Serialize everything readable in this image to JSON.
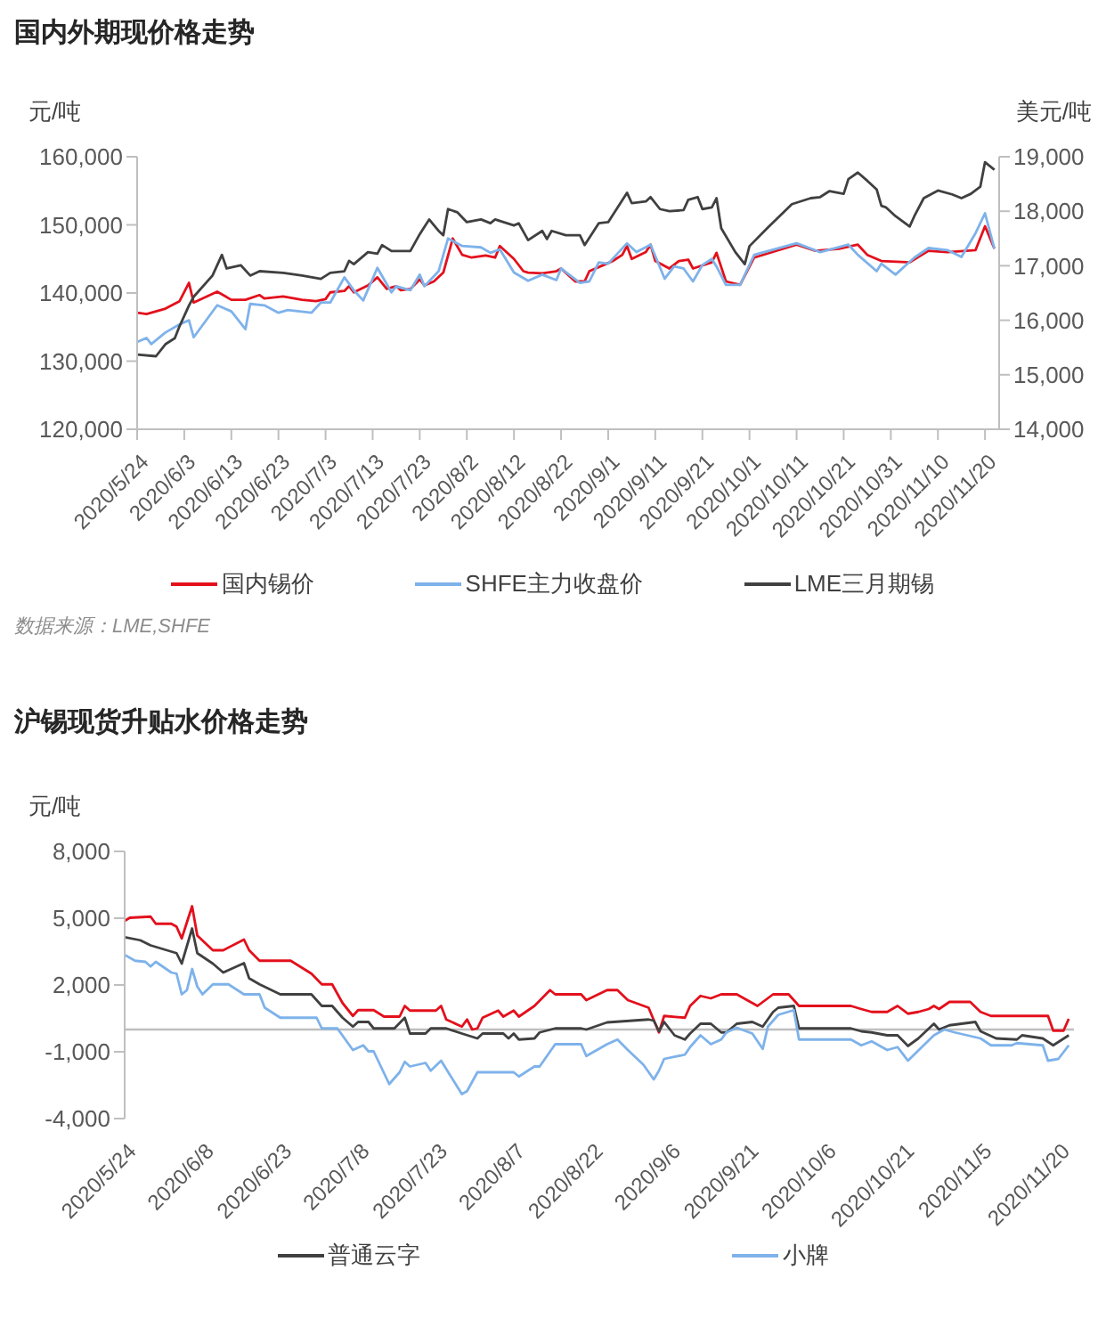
{
  "chart_data": [
    {
      "type": "line",
      "title": "国内外期现价格走势",
      "ylabel": "元/吨",
      "y2label": "美元/吨",
      "xlim": [
        "2020-05-24",
        "2020-11-23"
      ],
      "xticks": [
        {
          "value": "2020-05-24",
          "label": "2020/5/24"
        },
        {
          "value": "2020-06-03",
          "label": "2020/6/3"
        },
        {
          "value": "2020-06-13",
          "label": "2020/6/13"
        },
        {
          "value": "2020-06-23",
          "label": "2020/6/23"
        },
        {
          "value": "2020-07-03",
          "label": "2020/7/3"
        },
        {
          "value": "2020-07-13",
          "label": "2020/7/13"
        },
        {
          "value": "2020-07-23",
          "label": "2020/7/23"
        },
        {
          "value": "2020-08-02",
          "label": "2020/8/2"
        },
        {
          "value": "2020-08-12",
          "label": "2020/8/12"
        },
        {
          "value": "2020-08-22",
          "label": "2020/8/22"
        },
        {
          "value": "2020-09-01",
          "label": "2020/9/1"
        },
        {
          "value": "2020-09-11",
          "label": "2020/9/11"
        },
        {
          "value": "2020-09-21",
          "label": "2020/9/21"
        },
        {
          "value": "2020-10-01",
          "label": "2020/10/1"
        },
        {
          "value": "2020-10-11",
          "label": "2020/10/11"
        },
        {
          "value": "2020-10-21",
          "label": "2020/10/21"
        },
        {
          "value": "2020-10-31",
          "label": "2020/10/31"
        },
        {
          "value": "2020-11-10",
          "label": "2020/11/10"
        },
        {
          "value": "2020-11-20",
          "label": "2020/11/20"
        }
      ],
      "ylim": [
        120000,
        160000
      ],
      "yticks": [
        {
          "value": 120000,
          "label": "120,000"
        },
        {
          "value": 130000,
          "label": "130,000"
        },
        {
          "value": 140000,
          "label": "140,000"
        },
        {
          "value": 150000,
          "label": "150,000"
        },
        {
          "value": 160000,
          "label": "160,000"
        }
      ],
      "y2lim": [
        14000,
        19000
      ],
      "y2ticks": [
        {
          "value": 14000,
          "label": "14,000"
        },
        {
          "value": 15000,
          "label": "15,000"
        },
        {
          "value": 16000,
          "label": "16,000"
        },
        {
          "value": 17000,
          "label": "17,000"
        },
        {
          "value": 18000,
          "label": "18,000"
        },
        {
          "value": 19000,
          "label": "19,000"
        }
      ],
      "legend": "bottom",
      "annotations": [
        "数据来源：LME,SHFE"
      ],
      "series": [
        {
          "name": "国内锡价",
          "color": "#e3101c",
          "x": [
            "2020-05-24",
            "2020-05-26",
            "2020-05-30",
            "2020-06-02",
            "2020-06-04",
            "2020-06-05",
            "2020-06-10",
            "2020-06-13",
            "2020-06-16",
            "2020-06-19",
            "2020-06-20",
            "2020-06-24",
            "2020-06-28",
            "2020-07-01",
            "2020-07-03",
            "2020-07-04",
            "2020-07-07",
            "2020-07-08",
            "2020-07-09",
            "2020-07-12",
            "2020-07-14",
            "2020-07-16",
            "2020-07-18",
            "2020-07-19",
            "2020-07-21",
            "2020-07-23",
            "2020-07-24",
            "2020-07-26",
            "2020-07-28",
            "2020-07-30",
            "2020-08-01",
            "2020-08-03",
            "2020-08-06",
            "2020-08-08",
            "2020-08-09",
            "2020-08-12",
            "2020-08-14",
            "2020-08-15",
            "2020-08-18",
            "2020-08-21",
            "2020-08-22",
            "2020-08-25",
            "2020-08-27",
            "2020-08-28",
            "2020-08-31",
            "2020-09-02",
            "2020-09-04",
            "2020-09-05",
            "2020-09-06",
            "2020-09-09",
            "2020-09-10",
            "2020-09-11",
            "2020-09-14",
            "2020-09-16",
            "2020-09-18",
            "2020-09-19",
            "2020-09-23",
            "2020-09-24",
            "2020-09-26",
            "2020-09-29",
            "2020-10-02",
            "2020-10-11",
            "2020-10-15",
            "2020-10-20",
            "2020-10-24",
            "2020-10-26",
            "2020-10-29",
            "2020-11-04",
            "2020-11-08",
            "2020-11-12",
            "2020-11-18",
            "2020-11-20",
            "2020-11-22"
          ],
          "values": [
            137100,
            136900,
            137700,
            138800,
            141500,
            138600,
            140200,
            139000,
            139000,
            139700,
            139200,
            139500,
            139000,
            138800,
            139100,
            140100,
            140300,
            141000,
            140100,
            141100,
            142300,
            140600,
            141000,
            140400,
            140600,
            142000,
            141100,
            141700,
            143000,
            148000,
            145600,
            145200,
            145500,
            145200,
            146900,
            145000,
            143200,
            143000,
            142900,
            143200,
            143600,
            141700,
            141700,
            143200,
            144100,
            144700,
            145600,
            146900,
            145000,
            146000,
            147100,
            144700,
            143600,
            144700,
            144900,
            143600,
            144500,
            145900,
            141700,
            141200,
            145200,
            147100,
            146200,
            146500,
            147100,
            145600,
            144700,
            144500,
            146200,
            146000,
            146300,
            149800,
            146500
          ]
        },
        {
          "name": "SHFE主力收盘价",
          "color": "#7eb2ea",
          "x": [
            "2020-05-24",
            "2020-05-26",
            "2020-05-27",
            "2020-05-30",
            "2020-06-02",
            "2020-06-04",
            "2020-06-05",
            "2020-06-10",
            "2020-06-13",
            "2020-06-16",
            "2020-06-17",
            "2020-06-20",
            "2020-06-23",
            "2020-06-25",
            "2020-06-30",
            "2020-07-02",
            "2020-07-04",
            "2020-07-07",
            "2020-07-09",
            "2020-07-11",
            "2020-07-14",
            "2020-07-17",
            "2020-07-18",
            "2020-07-21",
            "2020-07-23",
            "2020-07-24",
            "2020-07-27",
            "2020-07-29",
            "2020-08-01",
            "2020-08-05",
            "2020-08-07",
            "2020-08-09",
            "2020-08-12",
            "2020-08-15",
            "2020-08-18",
            "2020-08-21",
            "2020-08-22",
            "2020-08-26",
            "2020-08-28",
            "2020-08-30",
            "2020-09-01",
            "2020-09-05",
            "2020-09-07",
            "2020-09-10",
            "2020-09-13",
            "2020-09-15",
            "2020-09-17",
            "2020-09-19",
            "2020-09-21",
            "2020-09-23",
            "2020-09-24",
            "2020-09-26",
            "2020-09-29",
            "2020-10-02",
            "2020-10-11",
            "2020-10-16",
            "2020-10-22",
            "2020-10-24",
            "2020-10-28",
            "2020-10-29",
            "2020-11-01",
            "2020-11-05",
            "2020-11-08",
            "2020-11-12",
            "2020-11-15",
            "2020-11-18",
            "2020-11-20",
            "2020-11-22"
          ],
          "values": [
            132800,
            133400,
            132500,
            134200,
            135400,
            136000,
            133500,
            138200,
            137300,
            134700,
            138400,
            138200,
            137100,
            137500,
            137100,
            138600,
            138600,
            142300,
            140400,
            138900,
            143700,
            140100,
            141000,
            140400,
            142700,
            141000,
            143200,
            148000,
            146900,
            146700,
            145900,
            146400,
            143000,
            141800,
            142700,
            141900,
            143600,
            141500,
            141700,
            144500,
            144300,
            147300,
            146000,
            147100,
            142100,
            143900,
            143600,
            141700,
            144100,
            145000,
            143900,
            141200,
            141200,
            145600,
            147300,
            146000,
            147100,
            145600,
            143200,
            144300,
            142700,
            145200,
            146600,
            146300,
            145300,
            148800,
            151700,
            146500
          ]
        },
        {
          "name": "LME三月期锡",
          "color": "#404040",
          "axis": "y2",
          "x": [
            "2020-05-24",
            "2020-05-28",
            "2020-05-30",
            "2020-06-01",
            "2020-06-02",
            "2020-06-04",
            "2020-06-05",
            "2020-06-09",
            "2020-06-11",
            "2020-06-12",
            "2020-06-15",
            "2020-06-17",
            "2020-06-19",
            "2020-06-24",
            "2020-06-28",
            "2020-07-02",
            "2020-07-04",
            "2020-07-07",
            "2020-07-08",
            "2020-07-09",
            "2020-07-12",
            "2020-07-14",
            "2020-07-15",
            "2020-07-17",
            "2020-07-21",
            "2020-07-23",
            "2020-07-25",
            "2020-07-27",
            "2020-07-28",
            "2020-07-29",
            "2020-07-31",
            "2020-08-02",
            "2020-08-05",
            "2020-08-07",
            "2020-08-08",
            "2020-08-12",
            "2020-08-13",
            "2020-08-15",
            "2020-08-18",
            "2020-08-19",
            "2020-08-20",
            "2020-08-23",
            "2020-08-26",
            "2020-08-27",
            "2020-08-30",
            "2020-09-01",
            "2020-09-05",
            "2020-09-06",
            "2020-09-09",
            "2020-09-10",
            "2020-09-12",
            "2020-09-14",
            "2020-09-17",
            "2020-09-18",
            "2020-09-20",
            "2020-09-21",
            "2020-09-23",
            "2020-09-24",
            "2020-09-25",
            "2020-09-28",
            "2020-09-30",
            "2020-10-01",
            "2020-10-05",
            "2020-10-10",
            "2020-10-14",
            "2020-10-16",
            "2020-10-18",
            "2020-10-21",
            "2020-10-22",
            "2020-10-24",
            "2020-10-26",
            "2020-10-28",
            "2020-10-29",
            "2020-10-30",
            "2020-11-01",
            "2020-11-04",
            "2020-11-05",
            "2020-11-07",
            "2020-11-10",
            "2020-11-13",
            "2020-11-15",
            "2020-11-17",
            "2020-11-19",
            "2020-11-20",
            "2020-11-22"
          ],
          "values": [
            15370,
            15340,
            15560,
            15670,
            15890,
            16270,
            16430,
            16820,
            17200,
            16950,
            17010,
            16820,
            16900,
            16870,
            16820,
            16760,
            16870,
            16900,
            17090,
            17030,
            17250,
            17220,
            17380,
            17270,
            17270,
            17580,
            17850,
            17640,
            17560,
            18040,
            17980,
            17800,
            17850,
            17780,
            17850,
            17740,
            17780,
            17470,
            17640,
            17490,
            17640,
            17560,
            17560,
            17380,
            17780,
            17800,
            18340,
            18150,
            18180,
            18260,
            18040,
            18000,
            18020,
            18210,
            18260,
            18040,
            18070,
            18240,
            17690,
            17250,
            17030,
            17360,
            17710,
            18130,
            18240,
            18260,
            18370,
            18320,
            18590,
            18710,
            18560,
            18400,
            18100,
            18070,
            17910,
            17720,
            17910,
            18240,
            18380,
            18310,
            18240,
            18320,
            18450,
            18900,
            18760
          ]
        }
      ]
    },
    {
      "type": "line",
      "title": "沪锡现货升贴水价格走势",
      "ylabel": "元/吨",
      "xlim": [
        "2020-05-24",
        "2020-11-23"
      ],
      "xticks": [
        {
          "value": "2020-05-24",
          "label": "2020/5/24"
        },
        {
          "value": "2020-06-08",
          "label": "2020/6/8"
        },
        {
          "value": "2020-06-23",
          "label": "2020/6/23"
        },
        {
          "value": "2020-07-08",
          "label": "2020/7/8"
        },
        {
          "value": "2020-07-23",
          "label": "2020/7/23"
        },
        {
          "value": "2020-08-07",
          "label": "2020/8/7"
        },
        {
          "value": "2020-08-22",
          "label": "2020/8/22"
        },
        {
          "value": "2020-09-06",
          "label": "2020/9/6"
        },
        {
          "value": "2020-09-21",
          "label": "2020/9/21"
        },
        {
          "value": "2020-10-06",
          "label": "2020/10/6"
        },
        {
          "value": "2020-10-21",
          "label": "2020/10/21"
        },
        {
          "value": "2020-11-05",
          "label": "2020/11/5"
        },
        {
          "value": "2020-11-20",
          "label": "2020/11/20"
        }
      ],
      "ylim": [
        -4000,
        8000
      ],
      "yticks": [
        {
          "value": -4000,
          "label": "-4,000"
        },
        {
          "value": -1000,
          "label": "-1,000"
        },
        {
          "value": 2000,
          "label": "2,000"
        },
        {
          "value": 5000,
          "label": "5,000"
        },
        {
          "value": 8000,
          "label": "8,000"
        }
      ],
      "ref_lines": [
        {
          "axis": "y",
          "value": 0,
          "color": "#bfbfbf"
        }
      ],
      "legend": "bottom",
      "series": [
        {
          "color": "#e3101c",
          "x": [
            "2020-05-24",
            "2020-05-25",
            "2020-05-29",
            "2020-05-30",
            "2020-06-02",
            "2020-06-03",
            "2020-06-04",
            "2020-06-06",
            "2020-06-07",
            "2020-06-10",
            "2020-06-12",
            "2020-06-16",
            "2020-06-17",
            "2020-06-19",
            "2020-06-25",
            "2020-06-29",
            "2020-07-01",
            "2020-07-03",
            "2020-07-05",
            "2020-07-07",
            "2020-07-08",
            "2020-07-11",
            "2020-07-13",
            "2020-07-16",
            "2020-07-17",
            "2020-07-18",
            "2020-07-23",
            "2020-07-24",
            "2020-07-25",
            "2020-07-28",
            "2020-07-29",
            "2020-07-30",
            "2020-07-31",
            "2020-08-01",
            "2020-08-04",
            "2020-08-05",
            "2020-08-07",
            "2020-08-08",
            "2020-08-11",
            "2020-08-14",
            "2020-08-15",
            "2020-08-20",
            "2020-08-21",
            "2020-08-25",
            "2020-08-27",
            "2020-08-29",
            "2020-09-02",
            "2020-09-04",
            "2020-09-05",
            "2020-09-09",
            "2020-09-10",
            "2020-09-12",
            "2020-09-14",
            "2020-09-16",
            "2020-09-19",
            "2020-09-22",
            "2020-09-23",
            "2020-09-26",
            "2020-09-29",
            "2020-10-01",
            "2020-10-11",
            "2020-10-13",
            "2020-10-15",
            "2020-10-18",
            "2020-10-20",
            "2020-10-22",
            "2020-10-24",
            "2020-10-26",
            "2020-10-27",
            "2020-10-28",
            "2020-10-30",
            "2020-11-03",
            "2020-11-05",
            "2020-11-07",
            "2020-11-18",
            "2020-11-19",
            "2020-11-21",
            "2020-11-22"
          ],
          "values": [
            4880,
            5020,
            5070,
            4750,
            4750,
            4620,
            4090,
            5540,
            4220,
            3560,
            3560,
            4040,
            3560,
            3090,
            3090,
            2510,
            2030,
            2030,
            1190,
            610,
            870,
            870,
            580,
            580,
            1060,
            850,
            850,
            1060,
            450,
            130,
            450,
            0,
            50,
            530,
            850,
            580,
            850,
            580,
            1060,
            1770,
            1580,
            1580,
            1320,
            1770,
            1770,
            1320,
            980,
            -130,
            610,
            530,
            1060,
            1510,
            1400,
            1580,
            1580,
            1190,
            1060,
            1580,
            1580,
            1060,
            1060,
            920,
            790,
            790,
            1060,
            710,
            790,
            920,
            1060,
            920,
            1240,
            1240,
            790,
            610,
            610,
            -50,
            -50,
            480
          ]
        },
        {
          "name": "普通云字",
          "color": "#404040",
          "x": [
            "2020-05-24",
            "2020-05-27",
            "2020-05-29",
            "2020-06-03",
            "2020-06-04",
            "2020-06-06",
            "2020-06-07",
            "2020-06-10",
            "2020-06-12",
            "2020-06-16",
            "2020-06-17",
            "2020-06-19",
            "2020-06-23",
            "2020-06-29",
            "2020-07-01",
            "2020-07-03",
            "2020-07-05",
            "2020-07-07",
            "2020-07-08",
            "2020-07-10",
            "2020-07-11",
            "2020-07-15",
            "2020-07-17",
            "2020-07-18",
            "2020-07-21",
            "2020-07-22",
            "2020-07-25",
            "2020-07-28",
            "2020-07-31",
            "2020-08-01",
            "2020-08-05",
            "2020-08-06",
            "2020-08-07",
            "2020-08-08",
            "2020-08-11",
            "2020-08-12",
            "2020-08-15",
            "2020-08-20",
            "2020-08-21",
            "2020-08-25",
            "2020-09-02",
            "2020-09-03",
            "2020-09-04",
            "2020-09-05",
            "2020-09-07",
            "2020-09-09",
            "2020-09-10",
            "2020-09-12",
            "2020-09-14",
            "2020-09-16",
            "2020-09-17",
            "2020-09-19",
            "2020-09-22",
            "2020-09-24",
            "2020-09-26",
            "2020-09-27",
            "2020-09-30",
            "2020-10-01",
            "2020-10-11",
            "2020-10-13",
            "2020-10-15",
            "2020-10-18",
            "2020-10-20",
            "2020-10-22",
            "2020-10-24",
            "2020-10-27",
            "2020-10-28",
            "2020-10-30",
            "2020-11-04",
            "2020-11-05",
            "2020-11-08",
            "2020-11-12",
            "2020-11-13",
            "2020-11-17",
            "2020-11-19",
            "2020-11-22"
          ],
          "values": [
            4150,
            4010,
            3780,
            3430,
            2960,
            4540,
            3430,
            2960,
            2560,
            2980,
            2300,
            2030,
            1580,
            1580,
            1060,
            1060,
            530,
            130,
            340,
            340,
            50,
            50,
            530,
            -180,
            -180,
            50,
            50,
            -180,
            -400,
            -180,
            -180,
            -400,
            -180,
            -450,
            -400,
            -130,
            50,
            50,
            0,
            320,
            450,
            400,
            -80,
            340,
            -260,
            -450,
            -180,
            260,
            260,
            -130,
            -130,
            260,
            340,
            130,
            790,
            980,
            1060,
            50,
            50,
            -80,
            -130,
            -260,
            -260,
            -740,
            -400,
            260,
            0,
            190,
            340,
            -80,
            -400,
            -450,
            -260,
            -400,
            -710,
            -260
          ]
        },
        {
          "name": "小牌",
          "color": "#7eb2ea",
          "x": [
            "2020-05-24",
            "2020-05-26",
            "2020-05-28",
            "2020-05-29",
            "2020-05-30",
            "2020-06-02",
            "2020-06-03",
            "2020-06-04",
            "2020-06-05",
            "2020-06-06",
            "2020-06-07",
            "2020-06-08",
            "2020-06-10",
            "2020-06-13",
            "2020-06-16",
            "2020-06-19",
            "2020-06-20",
            "2020-06-23",
            "2020-06-30",
            "2020-07-01",
            "2020-07-04",
            "2020-07-07",
            "2020-07-09",
            "2020-07-10",
            "2020-07-11",
            "2020-07-14",
            "2020-07-16",
            "2020-07-17",
            "2020-07-18",
            "2020-07-21",
            "2020-07-22",
            "2020-07-24",
            "2020-07-28",
            "2020-07-29",
            "2020-07-31",
            "2020-08-07",
            "2020-08-08",
            "2020-08-11",
            "2020-08-12",
            "2020-08-15",
            "2020-08-20",
            "2020-08-21",
            "2020-08-25",
            "2020-08-27",
            "2020-08-29",
            "2020-09-01",
            "2020-09-03",
            "2020-09-04",
            "2020-09-05",
            "2020-09-09",
            "2020-09-10",
            "2020-09-12",
            "2020-09-14",
            "2020-09-16",
            "2020-09-17",
            "2020-09-19",
            "2020-09-22",
            "2020-09-24",
            "2020-09-25",
            "2020-09-27",
            "2020-09-30",
            "2020-10-01",
            "2020-10-11",
            "2020-10-13",
            "2020-10-15",
            "2020-10-18",
            "2020-10-20",
            "2020-10-22",
            "2020-10-27",
            "2020-10-29",
            "2020-10-31",
            "2020-11-05",
            "2020-11-07",
            "2020-11-11",
            "2020-11-12",
            "2020-11-17",
            "2020-11-18",
            "2020-11-20",
            "2020-11-22"
          ],
          "values": [
            3350,
            3090,
            3040,
            2830,
            3040,
            2560,
            2510,
            1580,
            1770,
            2720,
            1930,
            1580,
            2030,
            2030,
            1580,
            1580,
            980,
            530,
            530,
            50,
            50,
            -920,
            -710,
            -980,
            -980,
            -2450,
            -1920,
            -1450,
            -1660,
            -1500,
            -1850,
            -1400,
            -2900,
            -2770,
            -1920,
            -1920,
            -2110,
            -1660,
            -1660,
            -660,
            -660,
            -1190,
            -660,
            -450,
            -920,
            -1580,
            -2240,
            -1850,
            -1320,
            -1130,
            -790,
            -260,
            -660,
            -450,
            -130,
            80,
            -180,
            -870,
            130,
            660,
            870,
            -450,
            -450,
            -710,
            -530,
            -920,
            -790,
            -1400,
            -260,
            0,
            -130,
            -400,
            -710,
            -710,
            -610,
            -710,
            -1400,
            -1320,
            -710
          ]
        }
      ]
    }
  ]
}
